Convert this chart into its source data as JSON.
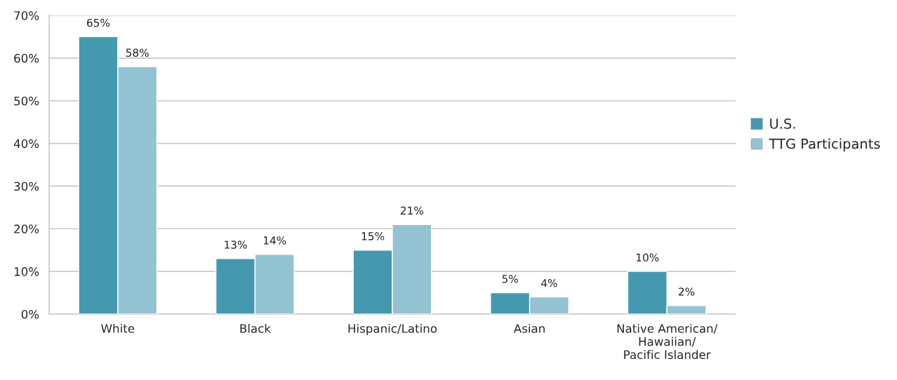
{
  "chart_data": {
    "type": "bar",
    "categories": [
      "White",
      "Black",
      "Hispanic/Latino",
      "Asian",
      "Native American/\nHawaiian/\nPacific Islander"
    ],
    "series": [
      {
        "name": "U.S.",
        "color": "#4499b0",
        "values": [
          65,
          13,
          15,
          5,
          10
        ],
        "value_labels": [
          "65%",
          "13%",
          "15%",
          "5%",
          "10%"
        ]
      },
      {
        "name": "TTG Participants",
        "color": "#93c2d3",
        "values": [
          58,
          14,
          21,
          4,
          2
        ],
        "value_labels": [
          "58%",
          "14%",
          "21%",
          "4%",
          "2%"
        ]
      }
    ],
    "ylim": [
      0,
      70
    ],
    "yticks": [
      {
        "value": 0,
        "label": "0%"
      },
      {
        "value": 10,
        "label": "10%"
      },
      {
        "value": 20,
        "label": "20%"
      },
      {
        "value": 30,
        "label": "30%"
      },
      {
        "value": 40,
        "label": "40%"
      },
      {
        "value": 50,
        "label": "50%"
      },
      {
        "value": 60,
        "label": "60%"
      },
      {
        "value": 70,
        "label": "70%"
      }
    ],
    "grid": "y",
    "legend": "right"
  }
}
